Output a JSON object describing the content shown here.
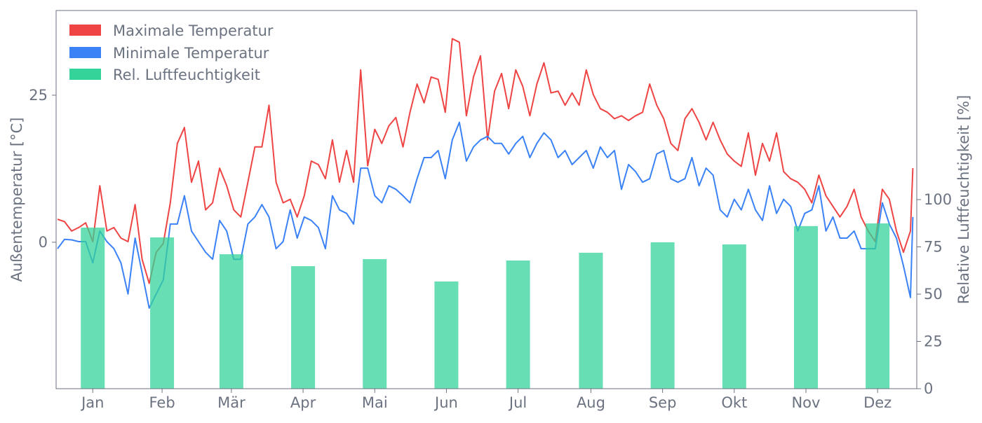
{
  "chart_data": {
    "type": "line",
    "colors": {
      "max": "#ef4444",
      "min": "#3b82f6",
      "humidity": "#34d399",
      "text": "#6b7280",
      "axis": "#6b7280"
    },
    "legend": {
      "placement": "top-left",
      "entries": [
        "Maximale Temperatur",
        "Minimale Temperatur",
        "Rel. Luftfeuchtigkeit"
      ]
    },
    "ylabel_left": "Außentemperatur [°C]",
    "ylabel_right": "Relative Luftfeuchtigkeit [%]",
    "ylim_left": [
      -24.9,
      39.4
    ],
    "ylim_right": [
      0,
      200
    ],
    "yticks_left": [
      0,
      25
    ],
    "yticks_right": [
      0,
      25,
      50,
      75,
      100
    ],
    "grid": false,
    "x": [
      "01-01",
      "01-04",
      "01-07",
      "01-10",
      "01-13",
      "01-16",
      "01-19",
      "01-22",
      "01-25",
      "01-28",
      "01-31",
      "02-03",
      "02-06",
      "02-09",
      "02-12",
      "02-15",
      "02-18",
      "02-21",
      "02-24",
      "02-27",
      "03-02",
      "03-05",
      "03-08",
      "03-11",
      "03-14",
      "03-17",
      "03-20",
      "03-23",
      "03-26",
      "03-29",
      "04-01",
      "04-04",
      "04-07",
      "04-10",
      "04-13",
      "04-16",
      "04-19",
      "04-22",
      "04-25",
      "04-28",
      "05-01",
      "05-04",
      "05-07",
      "05-10",
      "05-13",
      "05-16",
      "05-19",
      "05-22",
      "05-25",
      "05-28",
      "05-31",
      "06-03",
      "06-06",
      "06-09",
      "06-12",
      "06-15",
      "06-18",
      "06-21",
      "06-24",
      "06-27",
      "06-30",
      "07-03",
      "07-06",
      "07-09",
      "07-12",
      "07-15",
      "07-18",
      "07-21",
      "07-24",
      "07-27",
      "07-30",
      "08-02",
      "08-05",
      "08-08",
      "08-11",
      "08-14",
      "08-17",
      "08-20",
      "08-23",
      "08-26",
      "08-29",
      "09-01",
      "09-04",
      "09-07",
      "09-10",
      "09-13",
      "09-16",
      "09-19",
      "09-22",
      "09-25",
      "09-28",
      "10-01",
      "10-04",
      "10-07",
      "10-10",
      "10-13",
      "10-16",
      "10-19",
      "10-22",
      "10-25",
      "10-28",
      "10-31",
      "11-03",
      "11-06",
      "11-09",
      "11-12",
      "11-15",
      "11-18",
      "11-21",
      "11-24",
      "11-27",
      "11-30",
      "12-03",
      "12-06",
      "12-09",
      "12-12",
      "12-15",
      "12-18",
      "12-21",
      "12-24",
      "12-27",
      "12-30",
      "12-31"
    ],
    "series": [
      {
        "name": "Maximale Temperatur",
        "axis": "left",
        "values": [
          3.9,
          3.5,
          1.9,
          2.5,
          3.3,
          0.1,
          9.6,
          1.9,
          2.5,
          0.7,
          0.1,
          6.4,
          -2.9,
          -7.0,
          -1.7,
          -0.2,
          6.7,
          16.8,
          19.5,
          10.2,
          13.8,
          5.5,
          6.7,
          12.6,
          9.6,
          5.5,
          4.3,
          10.2,
          16.2,
          16.2,
          23.3,
          10.2,
          6.7,
          7.3,
          4.3,
          7.9,
          13.8,
          13.2,
          10.8,
          17.4,
          10.2,
          15.6,
          10.2,
          29.3,
          13.0,
          19.2,
          16.8,
          19.8,
          21.2,
          16.2,
          22.1,
          26.9,
          23.7,
          28.1,
          27.7,
          22.1,
          34.6,
          34.0,
          21.5,
          28.1,
          31.7,
          17.4,
          25.7,
          28.7,
          22.7,
          29.3,
          26.5,
          21.5,
          26.9,
          30.5,
          25.4,
          25.7,
          23.3,
          25.4,
          23.3,
          29.3,
          25.1,
          22.7,
          22.1,
          21.0,
          21.5,
          20.7,
          21.5,
          22.1,
          26.9,
          23.3,
          21.0,
          16.8,
          15.6,
          21.0,
          22.7,
          20.4,
          17.4,
          20.4,
          17.4,
          15.0,
          13.8,
          12.9,
          18.6,
          11.4,
          16.8,
          13.8,
          18.6,
          12.0,
          10.8,
          10.2,
          9.0,
          6.7,
          11.4,
          7.9,
          6.1,
          4.3,
          6.1,
          9.0,
          4.3,
          1.9,
          0.1,
          9.0,
          7.3,
          1.9,
          -1.7,
          1.9,
          12.6
        ]
      },
      {
        "name": "Minimale Temperatur",
        "axis": "left",
        "values": [
          -1.1,
          0.5,
          0.4,
          0.1,
          0.1,
          -3.5,
          1.9,
          0.1,
          -1.1,
          -3.5,
          -8.8,
          0.7,
          -5.2,
          -11.2,
          -8.8,
          -6.4,
          3.1,
          3.1,
          7.9,
          1.9,
          0.1,
          -1.7,
          -2.9,
          3.7,
          1.9,
          -2.9,
          -2.9,
          3.1,
          4.3,
          6.4,
          4.3,
          -1.1,
          0.1,
          5.5,
          0.7,
          4.3,
          3.7,
          2.5,
          -1.1,
          7.9,
          5.5,
          4.9,
          3.1,
          12.6,
          12.6,
          7.9,
          6.7,
          9.6,
          9.0,
          7.9,
          6.7,
          10.8,
          14.4,
          14.4,
          15.6,
          10.8,
          17.4,
          20.4,
          13.8,
          16.2,
          17.4,
          18.0,
          16.8,
          16.8,
          15.0,
          16.8,
          18.0,
          14.4,
          16.8,
          18.6,
          17.4,
          14.4,
          15.6,
          13.2,
          14.4,
          15.6,
          12.6,
          16.2,
          14.4,
          15.6,
          9.0,
          13.2,
          12.0,
          10.2,
          10.8,
          15.0,
          15.6,
          10.8,
          10.2,
          10.8,
          14.4,
          9.6,
          12.6,
          11.4,
          5.5,
          4.3,
          7.3,
          5.5,
          9.0,
          5.5,
          3.7,
          9.6,
          4.9,
          7.3,
          6.1,
          1.9,
          4.9,
          5.5,
          9.6,
          1.9,
          4.3,
          0.7,
          0.7,
          1.9,
          -1.1,
          -1.1,
          -1.1,
          6.7,
          3.1,
          0.7,
          -4.0,
          -9.4,
          4.3
        ]
      }
    ],
    "bars": {
      "name": "Rel. Luftfeuchtigkeit",
      "axis": "right",
      "categories": [
        "Jan",
        "Feb",
        "Mär",
        "Apr",
        "Mai",
        "Jun",
        "Jul",
        "Aug",
        "Sep",
        "Okt",
        "Nov",
        "Dez"
      ],
      "values": [
        85.2,
        80.0,
        71.1,
        64.8,
        68.5,
        56.7,
        67.8,
        71.9,
        77.4,
        76.3,
        86.0,
        87.4
      ]
    }
  }
}
